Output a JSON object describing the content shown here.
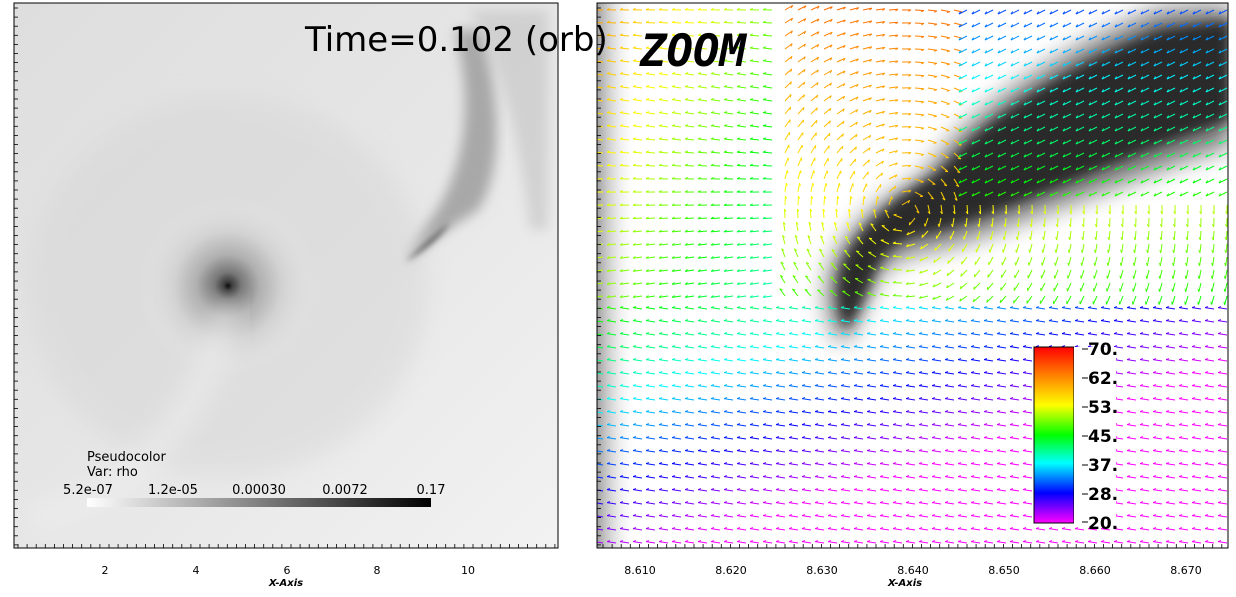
{
  "time_label": "Time=0.102 (orb)",
  "zoom_label": "ZOOM",
  "left_plot": {
    "legend_title": "Pseudocolor",
    "legend_var": "Var: rho",
    "colorbar_ticks": [
      "5.2e-07",
      "1.2e-05",
      "0.00030",
      "0.0072",
      "0.17"
    ],
    "colorbar_scale": "log",
    "colormap": "grayscale",
    "x_ticks": [
      "2",
      "4",
      "6",
      "8",
      "10"
    ],
    "xlabel": "X-Axis"
  },
  "right_plot": {
    "colorbar_ticks": [
      "70.",
      "62.",
      "53.",
      "45.",
      "37.",
      "28.",
      "20."
    ],
    "colormap": "hsv",
    "x_ticks": [
      "8.610",
      "8.620",
      "8.630",
      "8.640",
      "8.650",
      "8.660",
      "8.670"
    ],
    "xlabel": "X-Axis"
  },
  "chart_data": [
    {
      "type": "heatmap",
      "variable": "rho",
      "colorbar_range": [
        5.2e-07,
        0.17
      ],
      "colorbar_scale": "log",
      "xlim": [
        0,
        12
      ],
      "features": [
        "central density peak near x≈4.7",
        "curved filament toward upper right near x≈9–10"
      ]
    },
    {
      "type": "vector field over heatmap",
      "colorbar_range": [
        20,
        70
      ],
      "xlim": [
        8.605,
        8.676
      ],
      "x_ticks": [
        8.61,
        8.62,
        8.63,
        8.64,
        8.65,
        8.66,
        8.67
      ]
    }
  ],
  "colors": {
    "left_background": "#e8e8e8",
    "plot_frame": "#000000",
    "colorbar_top": "#ff2a00",
    "colorbar_bottom": "#ff00ff"
  }
}
